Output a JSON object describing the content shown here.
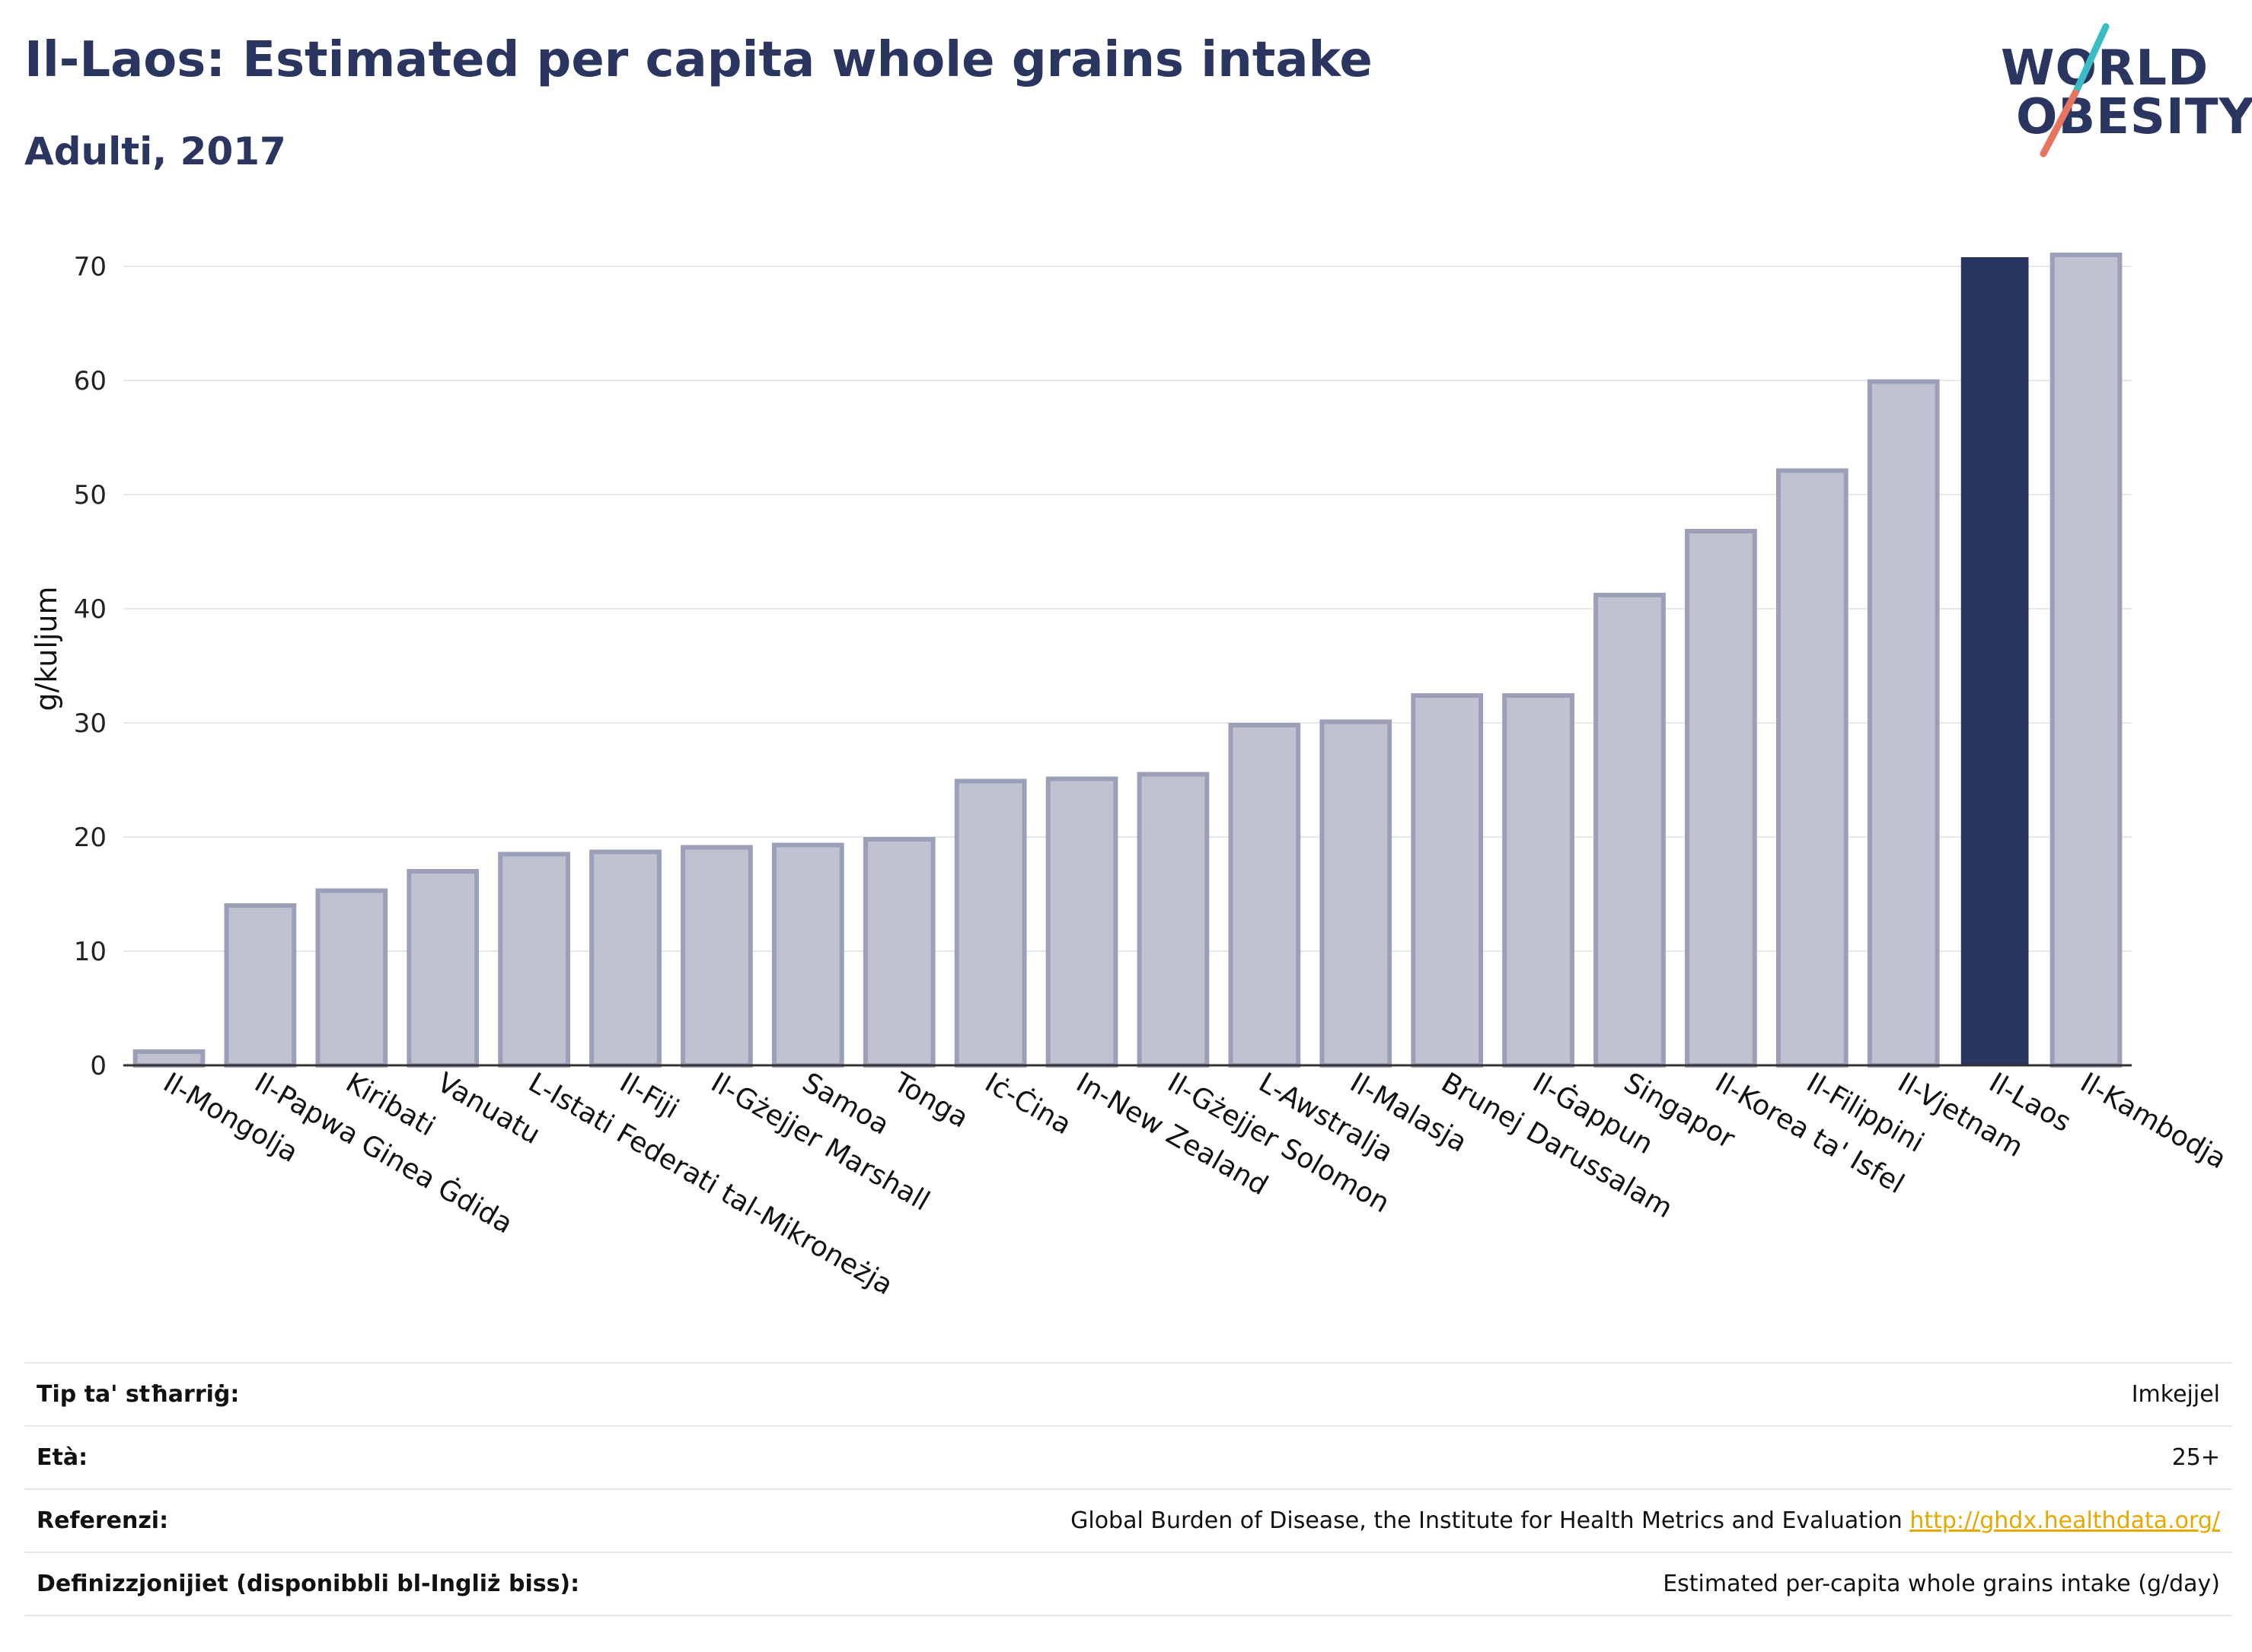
{
  "header": {
    "title": "Il-Laos: Estimated per capita whole grains intake",
    "subtitle": "Adulti, 2017"
  },
  "logo": {
    "line1": "WORLD",
    "line2": "OBESITY",
    "colors": {
      "text": "#2a3560",
      "slash_top": "#3bbcc4",
      "slash_bottom": "#e8735f"
    }
  },
  "chart_data": {
    "type": "bar",
    "ylabel": "g/kuljum",
    "ylim": [
      0,
      73
    ],
    "yticks": [
      0,
      10,
      20,
      30,
      40,
      50,
      60,
      70
    ],
    "grid": true,
    "categories": [
      "Il-Mongolja",
      "Il-Papwa Ginea Ġdida",
      "Kiribati",
      "Vanuatu",
      "L-Istati Federati tal-Mikroneżja",
      "Il-Fiji",
      "Il-Gżejjer Marshall",
      "Samoa",
      "Tonga",
      "Iċ-Ċina",
      "In-New Zealand",
      "Il-Gżejjer Solomon",
      "L-Awstralja",
      "Il-Malasja",
      "Brunej Darussalam",
      "Il-Ġappun",
      "Singapor",
      "Il-Korea ta' Isfel",
      "Il-Filippini",
      "Il-Vjetnam",
      "Il-Laos",
      "Il-Kambodja"
    ],
    "values": [
      1.2,
      14.0,
      15.3,
      17.0,
      18.5,
      18.7,
      19.1,
      19.3,
      19.8,
      24.9,
      25.1,
      25.5,
      29.8,
      30.1,
      32.4,
      32.4,
      41.2,
      46.8,
      52.1,
      59.9,
      70.8,
      71.0
    ],
    "highlight": "Il-Laos",
    "colors": {
      "bar": "#bfc2d0",
      "bar_border": "#9ba0b8",
      "highlight": "#2a3560",
      "grid": "#e6e8ec",
      "axis": "#333333"
    }
  },
  "info": {
    "rows": [
      {
        "key": "Tip ta' stħarriġ:",
        "value": "Imkejjel"
      },
      {
        "key": "Età:",
        "value": "25+"
      },
      {
        "key": "Referenzi:",
        "value": "Global Burden of Disease, the Institute for Health Metrics and Evaluation",
        "link": "http://ghdx.healthdata.org/"
      },
      {
        "key": "Definizzjonijiet (disponibbli bl-Ingliż biss):",
        "value": "Estimated per-capita whole grains intake (g/day)"
      }
    ]
  }
}
